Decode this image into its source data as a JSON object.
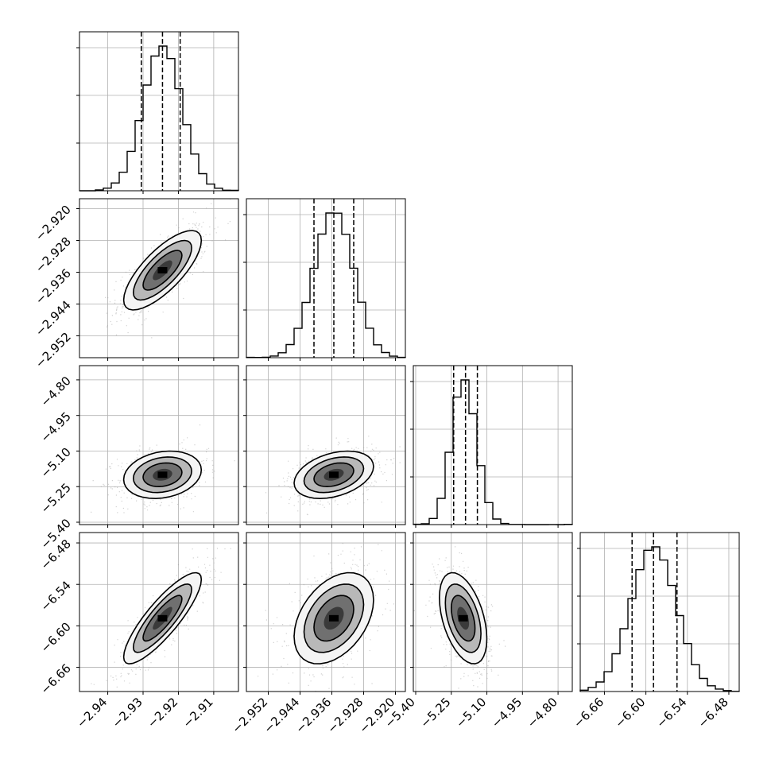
{
  "chart_data": {
    "type": "corner",
    "grid": true,
    "parameters": [
      {
        "index": 0,
        "range": [
          -2.948,
          -2.903
        ],
        "ticks": [
          -2.94,
          -2.93,
          -2.92,
          -2.91
        ],
        "tick_labels": [
          "−2.94",
          "−2.93",
          "−2.92",
          "−2.91"
        ],
        "quantiles": [
          -2.9305,
          -2.9245,
          -2.9195
        ],
        "peak": -2.9245,
        "width": 0.0055
      },
      {
        "index": 1,
        "range": [
          -2.9575,
          -2.9175
        ],
        "ticks": [
          -2.952,
          -2.944,
          -2.936,
          -2.928,
          -2.92
        ],
        "tick_labels": [
          "−2.952",
          "−2.944",
          "−2.936",
          "−2.928",
          "−2.920"
        ],
        "quantiles": [
          -2.9405,
          -2.9355,
          -2.9305
        ],
        "peak": -2.9355,
        "width": 0.005
      },
      {
        "index": 2,
        "range": [
          -5.41,
          -4.74
        ],
        "ticks": [
          -5.4,
          -5.25,
          -5.1,
          -4.95,
          -4.8
        ],
        "tick_labels": [
          "−5.40",
          "−5.25",
          "−5.10",
          "−4.95",
          "−4.80"
        ],
        "quantiles": [
          -5.24,
          -5.19,
          -5.14
        ],
        "peak": -5.2,
        "width": 0.05
      },
      {
        "index": 3,
        "range": [
          -6.695,
          -6.465
        ],
        "ticks": [
          -6.66,
          -6.6,
          -6.54,
          -6.48
        ],
        "tick_labels": [
          "−6.66",
          "−6.60",
          "−6.54",
          "−6.48"
        ],
        "quantiles": [
          -6.62,
          -6.589,
          -6.555
        ],
        "peak": -6.589,
        "width": 0.033
      }
    ],
    "correlations": {
      "1_0": 0.75,
      "2_0": 0.2,
      "2_1": 0.35,
      "3_0": 0.85,
      "3_1": 0.4,
      "3_2": -0.45
    },
    "histogram_bins": 20,
    "contour_levels_sigma": [
      0.5,
      1.0,
      1.5,
      2.0
    ]
  }
}
